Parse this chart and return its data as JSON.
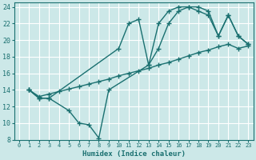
{
  "xlabel": "Humidex (Indice chaleur)",
  "bg_color": "#cce8e8",
  "grid_color": "#ffffff",
  "line_color": "#1a7070",
  "xlim": [
    -0.5,
    23.5
  ],
  "ylim": [
    8,
    24.5
  ],
  "xticks": [
    0,
    1,
    2,
    3,
    4,
    5,
    6,
    7,
    8,
    9,
    10,
    11,
    12,
    13,
    14,
    15,
    16,
    17,
    18,
    19,
    20,
    21,
    22,
    23
  ],
  "yticks": [
    8,
    10,
    12,
    14,
    16,
    18,
    20,
    22,
    24
  ],
  "line1": {
    "x": [
      1,
      2,
      3,
      10,
      11,
      12,
      13,
      14,
      15,
      16,
      17,
      18,
      19,
      20,
      21,
      22,
      23
    ],
    "y": [
      14,
      13,
      13,
      19,
      22,
      22.5,
      17,
      22,
      23.5,
      24,
      24,
      23.5,
      23,
      20.5,
      23,
      20.5,
      19.5
    ]
  },
  "line2": {
    "x": [
      1,
      2,
      3,
      4,
      5,
      6,
      7,
      8,
      9,
      10,
      11,
      12,
      13,
      14,
      15,
      16,
      17,
      18,
      19,
      20,
      21,
      22,
      23
    ],
    "y": [
      14,
      13.2,
      13.5,
      13.8,
      14.1,
      14.4,
      14.7,
      15.0,
      15.3,
      15.7,
      16.0,
      16.3,
      16.6,
      17.0,
      17.3,
      17.7,
      18.1,
      18.5,
      18.8,
      19.2,
      19.5,
      19.0,
      19.3
    ]
  },
  "line3": {
    "x": [
      1,
      2,
      3,
      5,
      6,
      7,
      8,
      9,
      13,
      14,
      15,
      16,
      17,
      18,
      19,
      20,
      21,
      22,
      23
    ],
    "y": [
      14,
      13,
      13,
      11.5,
      10,
      9.8,
      8.2,
      14,
      17,
      19,
      22,
      23.5,
      24,
      24,
      23.5,
      20.5,
      23,
      20.5,
      19.5
    ]
  }
}
